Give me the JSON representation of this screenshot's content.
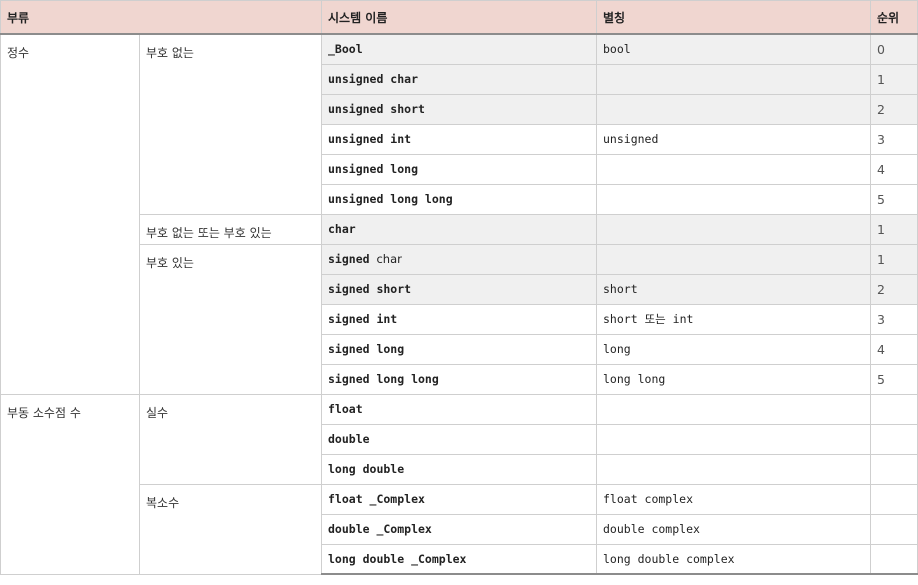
{
  "headers": {
    "category": "부류",
    "system_name": "시스템 이름",
    "alias": "별칭",
    "rank": "순위"
  },
  "groups": {
    "integer": "정수",
    "unsigned": "부호 없는",
    "either": "부호 없는 또는 부호 있는",
    "signed": "부호 있는",
    "floating": "부동 소수점 수",
    "real": "실수",
    "complex": "복소수"
  },
  "rows": [
    {
      "name": "_Bool",
      "alias": "bool",
      "rank": "0"
    },
    {
      "name": "unsigned char",
      "alias": "",
      "rank": "1"
    },
    {
      "name": "unsigned short",
      "alias": "",
      "rank": "2"
    },
    {
      "name": "unsigned int",
      "alias": "unsigned",
      "rank": "3"
    },
    {
      "name": "unsigned long",
      "alias": "",
      "rank": "4"
    },
    {
      "name": "unsigned long long",
      "alias": "",
      "rank": "5"
    },
    {
      "name": "char",
      "alias": "",
      "rank": "1"
    },
    {
      "name_a": "signed",
      "name_b": "char",
      "alias": "",
      "rank": "1"
    },
    {
      "name": "signed short",
      "alias": "short",
      "rank": "2"
    },
    {
      "name": "signed int",
      "alias_a": "short",
      "alias_b": "또는",
      "alias_c": "int",
      "rank": "3"
    },
    {
      "name": "signed long",
      "alias": "long",
      "rank": "4"
    },
    {
      "name": "signed long long",
      "alias": "long long",
      "rank": "5"
    },
    {
      "name": "float",
      "alias": "",
      "rank": ""
    },
    {
      "name": "double",
      "alias": "",
      "rank": ""
    },
    {
      "name": "long double",
      "alias": "",
      "rank": ""
    },
    {
      "name": "float _Complex",
      "alias": "float complex",
      "rank": ""
    },
    {
      "name": "double _Complex",
      "alias": "double complex",
      "rank": ""
    },
    {
      "name": "long double _Complex",
      "alias": "long double complex",
      "rank": ""
    }
  ]
}
